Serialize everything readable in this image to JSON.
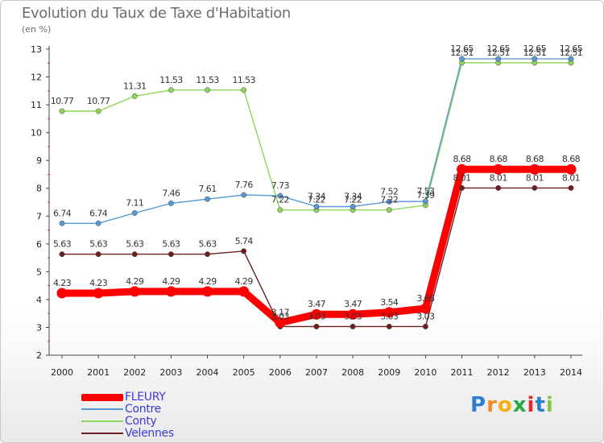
{
  "header": {
    "title": "Evolution du Taux de Taxe d'Habitation",
    "subtitle": "(en %)"
  },
  "chart_data": {
    "type": "line",
    "title": "Evolution du Taux de Taxe d'Habitation",
    "ylabel": "(en %)",
    "x": [
      "2000",
      "2001",
      "2002",
      "2003",
      "2004",
      "2005",
      "2006",
      "2007",
      "2008",
      "2009",
      "2010",
      "2011",
      "2012",
      "2013",
      "2014"
    ],
    "ylim": [
      2,
      13
    ],
    "yticks": [
      2,
      3,
      4,
      5,
      6,
      7,
      8,
      9,
      10,
      11,
      12,
      13
    ],
    "grid": false,
    "legend_position": "bottom-left",
    "series": [
      {
        "name": "FLEURY",
        "color": "#ff0000",
        "values": [
          4.23,
          4.23,
          4.29,
          4.29,
          4.29,
          4.29,
          3.17,
          3.47,
          3.47,
          3.54,
          3.68,
          8.68,
          8.68,
          8.68,
          8.68
        ]
      },
      {
        "name": "Contre",
        "color": "#5a9ad4",
        "values": [
          6.74,
          6.74,
          7.11,
          7.46,
          7.61,
          7.76,
          7.73,
          7.34,
          7.34,
          7.52,
          7.53,
          12.65,
          12.65,
          12.65,
          12.65
        ]
      },
      {
        "name": "Conty",
        "color": "#8ed65a",
        "values": [
          10.77,
          10.77,
          11.31,
          11.53,
          11.53,
          11.53,
          7.22,
          7.22,
          7.22,
          7.22,
          7.39,
          12.51,
          12.51,
          12.51,
          12.51
        ]
      },
      {
        "name": "Velennes",
        "color": "#6b1f1f",
        "values": [
          5.63,
          5.63,
          5.63,
          5.63,
          5.63,
          5.74,
          3.03,
          3.03,
          3.03,
          3.03,
          3.03,
          8.01,
          8.01,
          8.01,
          8.01
        ]
      }
    ]
  },
  "legend": {
    "items": [
      "FLEURY",
      "Contre",
      "Conty",
      "Velennes"
    ]
  },
  "logo": {
    "letters": [
      "P",
      "r",
      "o",
      "x",
      "i",
      "t",
      "i"
    ],
    "colors": [
      "#2f7fd0",
      "#f08a24",
      "#f5b10f",
      "#2aa84a",
      "#e8282b",
      "#2f7fd0",
      "#8bc34a"
    ]
  }
}
